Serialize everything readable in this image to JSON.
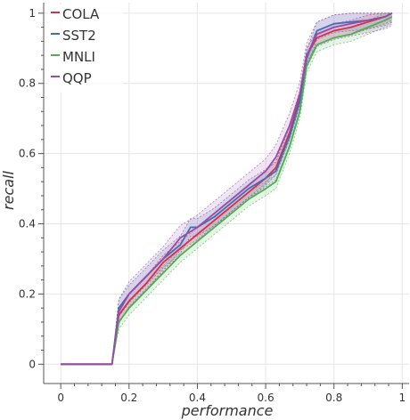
{
  "chart_data": {
    "type": "line",
    "title": "",
    "xlabel": "performance",
    "ylabel": "recall",
    "xlim": [
      -0.05,
      1.02
    ],
    "ylim": [
      -0.055,
      1.03
    ],
    "x_ticks": [
      0,
      0.2,
      0.4,
      0.6,
      0.8,
      1
    ],
    "x_tick_labels": [
      "0",
      "0.2",
      "0.4",
      "0.6",
      "0.8",
      "1"
    ],
    "y_ticks": [
      0,
      0.2,
      0.4,
      0.6,
      0.8,
      1
    ],
    "y_tick_labels": [
      "0",
      "0.2",
      "0.4",
      "0.6",
      "0.8",
      "1"
    ],
    "grid": true,
    "legend_position": "top-left",
    "series": [
      {
        "name": "COLA",
        "color": "#d62f4b",
        "x": [
          0,
          0.15,
          0.17,
          0.2,
          0.25,
          0.3,
          0.35,
          0.4,
          0.45,
          0.5,
          0.55,
          0.6,
          0.63,
          0.67,
          0.7,
          0.72,
          0.75,
          0.8,
          0.85,
          0.9,
          0.95,
          0.97
        ],
        "y": [
          0,
          0,
          0.14,
          0.18,
          0.23,
          0.29,
          0.33,
          0.37,
          0.41,
          0.45,
          0.49,
          0.53,
          0.56,
          0.66,
          0.76,
          0.88,
          0.93,
          0.95,
          0.96,
          0.975,
          0.99,
          1.0
        ],
        "band": 0.02
      },
      {
        "name": "SST2",
        "color": "#3f6fb5",
        "x": [
          0,
          0.15,
          0.17,
          0.2,
          0.25,
          0.3,
          0.35,
          0.38,
          0.4,
          0.45,
          0.5,
          0.55,
          0.6,
          0.63,
          0.67,
          0.7,
          0.72,
          0.75,
          0.8,
          0.85,
          0.9,
          0.95,
          0.97
        ],
        "y": [
          0,
          0,
          0.16,
          0.2,
          0.25,
          0.3,
          0.34,
          0.39,
          0.39,
          0.42,
          0.46,
          0.5,
          0.53,
          0.55,
          0.65,
          0.75,
          0.87,
          0.95,
          0.97,
          0.975,
          0.98,
          0.99,
          1.0
        ],
        "band": 0.025
      },
      {
        "name": "MNLI",
        "color": "#4caf50",
        "x": [
          0,
          0.15,
          0.17,
          0.2,
          0.25,
          0.3,
          0.35,
          0.4,
          0.45,
          0.5,
          0.55,
          0.6,
          0.63,
          0.67,
          0.7,
          0.72,
          0.75,
          0.8,
          0.85,
          0.9,
          0.95,
          0.97
        ],
        "y": [
          0,
          0,
          0.12,
          0.16,
          0.21,
          0.26,
          0.31,
          0.35,
          0.39,
          0.43,
          0.47,
          0.5,
          0.52,
          0.62,
          0.72,
          0.85,
          0.91,
          0.93,
          0.94,
          0.96,
          0.98,
          0.99
        ],
        "band": 0.02
      },
      {
        "name": "QQP",
        "color": "#9b4aa8",
        "x": [
          0,
          0.15,
          0.17,
          0.2,
          0.25,
          0.3,
          0.35,
          0.4,
          0.45,
          0.5,
          0.55,
          0.6,
          0.63,
          0.67,
          0.7,
          0.72,
          0.75,
          0.8,
          0.85,
          0.9,
          0.95,
          0.97
        ],
        "y": [
          0,
          0,
          0.15,
          0.2,
          0.25,
          0.3,
          0.36,
          0.39,
          0.43,
          0.47,
          0.51,
          0.55,
          0.59,
          0.68,
          0.77,
          0.88,
          0.94,
          0.96,
          0.97,
          0.98,
          0.99,
          1.0
        ],
        "band": 0.035
      }
    ]
  }
}
